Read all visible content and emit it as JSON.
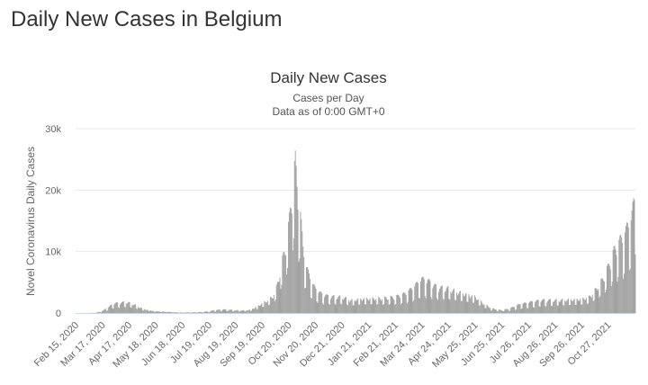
{
  "page": {
    "heading": "Daily New Cases in Belgium"
  },
  "chart_data": {
    "type": "bar",
    "title": "Daily New Cases",
    "subtitle": "Cases per Day",
    "note": "Data as of 0:00 GMT+0",
    "ylabel": "Novel Coronavirus Daily Cases",
    "xlabel": "",
    "ylim": [
      0,
      30000
    ],
    "yticks": [
      0,
      10000,
      20000,
      30000
    ],
    "ytick_labels": [
      "0",
      "10k",
      "20k",
      "30k"
    ],
    "grid": true,
    "legend": "none",
    "bar_color": "#999999",
    "x_start": "2020-02-15",
    "x_end": "2021-11-28",
    "x_ticks": [
      {
        "date": "2020-02-15",
        "label": "Feb 15, 2020"
      },
      {
        "date": "2020-03-17",
        "label": "Mar 17, 2020"
      },
      {
        "date": "2020-04-17",
        "label": "Apr 17, 2020"
      },
      {
        "date": "2020-05-18",
        "label": "May 18, 2020"
      },
      {
        "date": "2020-06-18",
        "label": "Jun 18, 2020"
      },
      {
        "date": "2020-07-19",
        "label": "Jul 19, 2020"
      },
      {
        "date": "2020-08-19",
        "label": "Aug 19, 2020"
      },
      {
        "date": "2020-09-19",
        "label": "Sep 19, 2020"
      },
      {
        "date": "2020-10-20",
        "label": "Oct 20, 2020"
      },
      {
        "date": "2020-11-20",
        "label": "Nov 20, 2020"
      },
      {
        "date": "2020-12-21",
        "label": "Dec 21, 2020"
      },
      {
        "date": "2021-01-21",
        "label": "Jan 21, 2021"
      },
      {
        "date": "2021-02-21",
        "label": "Feb 21, 2021"
      },
      {
        "date": "2021-03-24",
        "label": "Mar 24, 2021"
      },
      {
        "date": "2021-04-24",
        "label": "Apr 24, 2021"
      },
      {
        "date": "2021-05-25",
        "label": "May 25, 2021"
      },
      {
        "date": "2021-06-25",
        "label": "Jun 25, 2021"
      },
      {
        "date": "2021-07-26",
        "label": "Jul 26, 2021"
      },
      {
        "date": "2021-08-26",
        "label": "Aug 26, 2021"
      },
      {
        "date": "2021-09-26",
        "label": "Sep 26, 2021"
      },
      {
        "date": "2021-10-27",
        "label": "Oct 27, 2021"
      }
    ],
    "series": [
      {
        "points": [
          [
            "2020-02-15",
            0
          ],
          [
            "2020-03-01",
            0
          ],
          [
            "2020-03-10",
            50
          ],
          [
            "2020-03-17",
            300
          ],
          [
            "2020-03-24",
            900
          ],
          [
            "2020-03-31",
            1500
          ],
          [
            "2020-04-07",
            1600
          ],
          [
            "2020-04-14",
            1700
          ],
          [
            "2020-04-17",
            1600
          ],
          [
            "2020-04-24",
            1300
          ],
          [
            "2020-05-01",
            800
          ],
          [
            "2020-05-08",
            500
          ],
          [
            "2020-05-18",
            300
          ],
          [
            "2020-05-28",
            220
          ],
          [
            "2020-06-08",
            130
          ],
          [
            "2020-06-18",
            80
          ],
          [
            "2020-06-28",
            100
          ],
          [
            "2020-07-10",
            150
          ],
          [
            "2020-07-19",
            250
          ],
          [
            "2020-07-26",
            450
          ],
          [
            "2020-08-02",
            550
          ],
          [
            "2020-08-09",
            550
          ],
          [
            "2020-08-19",
            450
          ],
          [
            "2020-08-26",
            400
          ],
          [
            "2020-09-05",
            500
          ],
          [
            "2020-09-12",
            900
          ],
          [
            "2020-09-19",
            1500
          ],
          [
            "2020-09-26",
            2000
          ],
          [
            "2020-10-01",
            2500
          ],
          [
            "2020-10-05",
            3500
          ],
          [
            "2020-10-08",
            5000
          ],
          [
            "2020-10-12",
            7500
          ],
          [
            "2020-10-16",
            10000
          ],
          [
            "2020-10-20",
            13000
          ],
          [
            "2020-10-23",
            17000
          ],
          [
            "2020-10-26",
            21000
          ],
          [
            "2020-10-28",
            23000
          ],
          [
            "2020-10-31",
            18000
          ],
          [
            "2020-11-03",
            15000
          ],
          [
            "2020-11-06",
            10000
          ],
          [
            "2020-11-10",
            7000
          ],
          [
            "2020-11-15",
            5000
          ],
          [
            "2020-11-20",
            3800
          ],
          [
            "2020-11-27",
            3000
          ],
          [
            "2020-12-05",
            2600
          ],
          [
            "2020-12-14",
            2500
          ],
          [
            "2020-12-21",
            2500
          ],
          [
            "2021-01-01",
            2000
          ],
          [
            "2021-01-10",
            2200
          ],
          [
            "2021-01-21",
            2300
          ],
          [
            "2021-02-05",
            2300
          ],
          [
            "2021-02-21",
            2500
          ],
          [
            "2021-03-05",
            3000
          ],
          [
            "2021-03-15",
            4000
          ],
          [
            "2021-03-24",
            5200
          ],
          [
            "2021-03-31",
            5000
          ],
          [
            "2021-04-08",
            4200
          ],
          [
            "2021-04-16",
            3900
          ],
          [
            "2021-04-24",
            3800
          ],
          [
            "2021-05-03",
            3400
          ],
          [
            "2021-05-14",
            3000
          ],
          [
            "2021-05-25",
            2600
          ],
          [
            "2021-06-04",
            1500
          ],
          [
            "2021-06-14",
            700
          ],
          [
            "2021-06-25",
            450
          ],
          [
            "2021-07-05",
            700
          ],
          [
            "2021-07-15",
            1300
          ],
          [
            "2021-07-26",
            1600
          ],
          [
            "2021-08-10",
            2000
          ],
          [
            "2021-08-26",
            2000
          ],
          [
            "2021-09-10",
            2100
          ],
          [
            "2021-09-26",
            2200
          ],
          [
            "2021-10-05",
            2500
          ],
          [
            "2021-10-12",
            3500
          ],
          [
            "2021-10-20",
            5000
          ],
          [
            "2021-10-27",
            7000
          ],
          [
            "2021-11-03",
            9500
          ],
          [
            "2021-11-10",
            11000
          ],
          [
            "2021-11-17",
            12500
          ],
          [
            "2021-11-24",
            15000
          ],
          [
            "2021-11-28",
            18000
          ]
        ]
      }
    ]
  }
}
